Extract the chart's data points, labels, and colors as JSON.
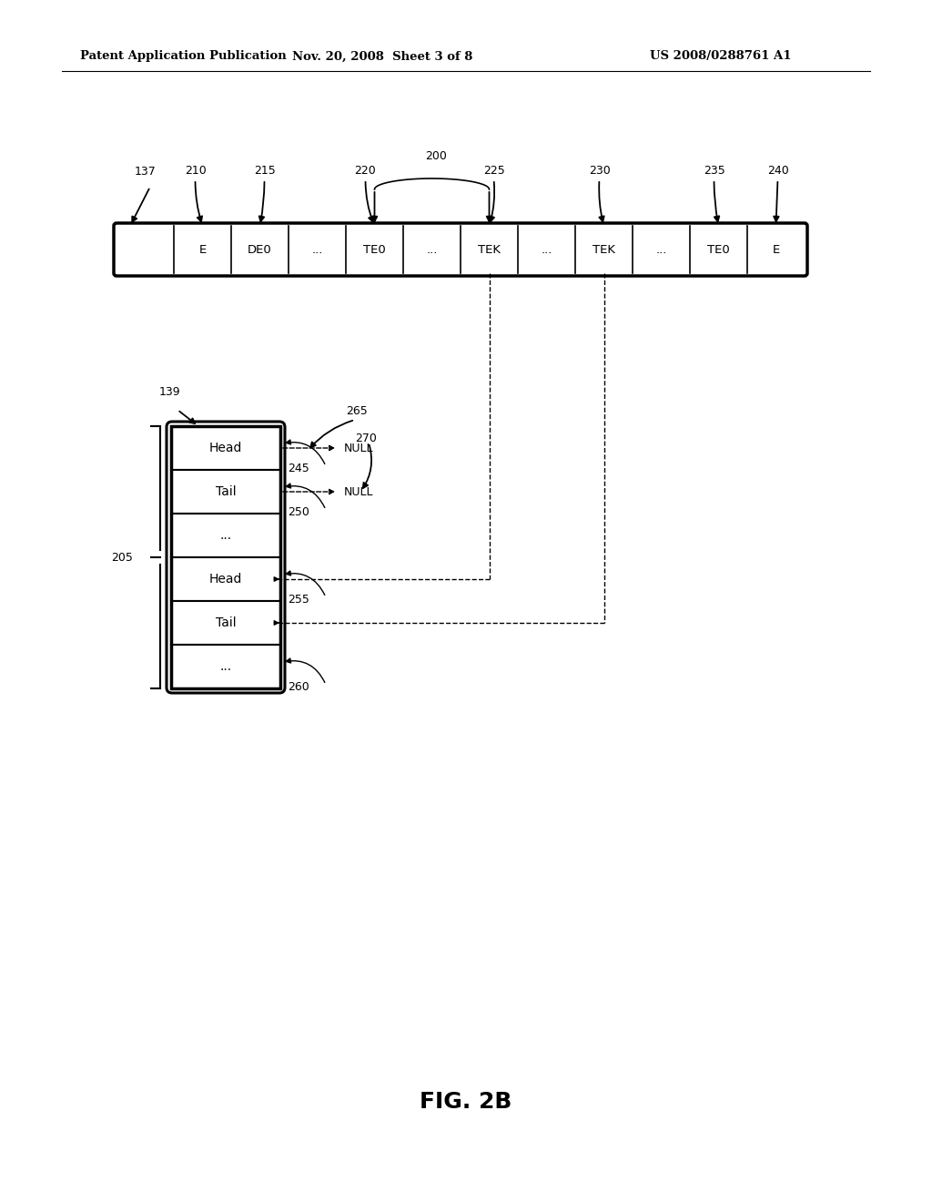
{
  "bg_color": "#ffffff",
  "header_text": {
    "left": "Patent Application Publication",
    "center": "Nov. 20, 2008  Sheet 3 of 8",
    "right": "US 2008/0288761 A1"
  },
  "figure_label": "FIG. 2B",
  "array_cells": [
    "",
    "E",
    "DE0",
    "...",
    "TE0",
    "...",
    "TEK",
    "...",
    "TEK",
    "...",
    "TE0",
    "E"
  ],
  "list_cells": [
    "Head",
    "Tail",
    "...",
    "Head",
    "Tail",
    "..."
  ]
}
